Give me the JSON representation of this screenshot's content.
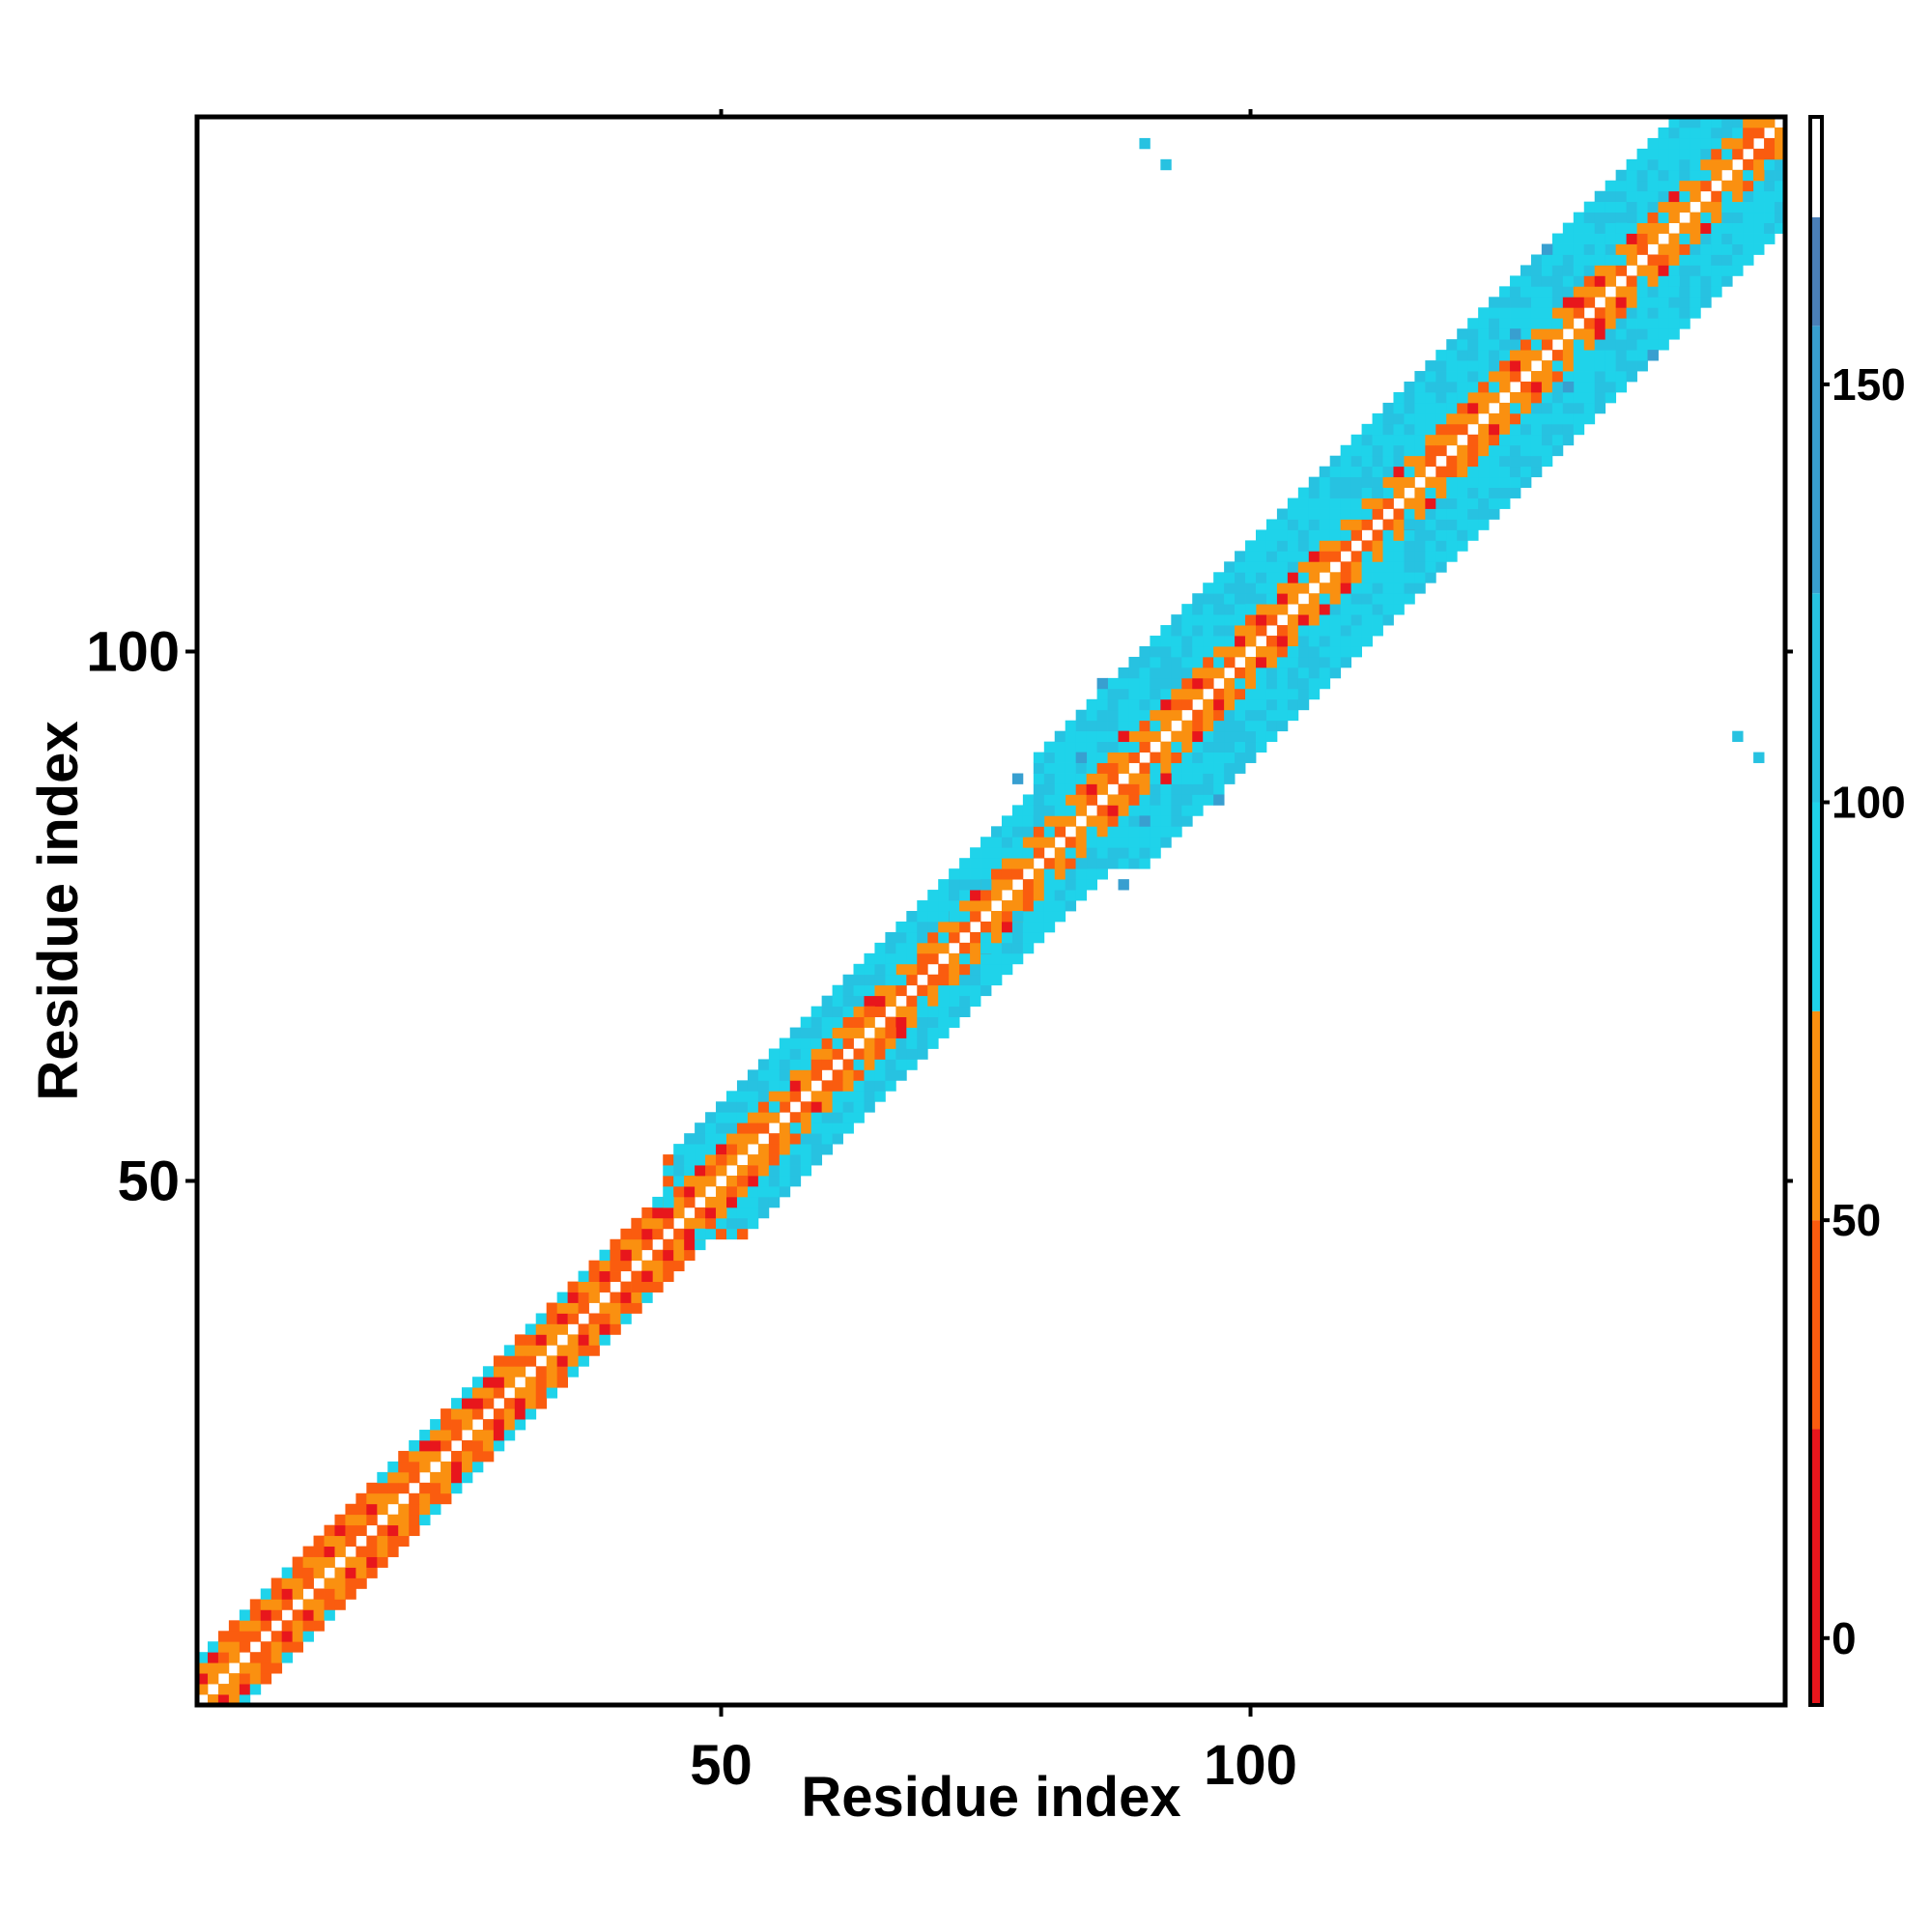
{
  "chart_data": {
    "type": "heatmap",
    "title": "",
    "xlabel": "Residue index",
    "ylabel": "Residue index",
    "n_residues": 150,
    "xlim": [
      0.5,
      150.5
    ],
    "ylim": [
      0.5,
      150.5
    ],
    "x_ticks": [
      50,
      100
    ],
    "y_ticks": [
      50,
      100
    ],
    "colorbar": {
      "range": [
        -8,
        182
      ],
      "ticks": [
        0,
        50,
        100,
        150
      ],
      "bands": [
        {
          "from": -8,
          "to": 25,
          "color": "#e8161c"
        },
        {
          "from": 25,
          "to": 50,
          "color": "#fa5c0f"
        },
        {
          "from": 50,
          "to": 75,
          "color": "#fa9010"
        },
        {
          "from": 75,
          "to": 100,
          "color": "#1fd3ea"
        },
        {
          "from": 100,
          "to": 125,
          "color": "#27c2e1"
        },
        {
          "from": 125,
          "to": 157,
          "color": "#389fd0"
        },
        {
          "from": 157,
          "to": 170,
          "color": "#4a7fb8"
        },
        {
          "from": 170,
          "to": 182,
          "color": "#ffffff"
        }
      ]
    },
    "grid": false,
    "diagonal_band": {
      "description_values": "contacts concentrated along the diagonal, width increasing from ~4 residues to ~10 residues toward the C-terminus"
    },
    "contacts": [
      {
        "i": 40,
        "j": 42,
        "v": 40
      },
      {
        "i": 41,
        "j": 43,
        "v": 20
      },
      {
        "i": 45,
        "j": 48,
        "v": 90
      },
      {
        "i": 47,
        "j": 50,
        "v": 60
      },
      {
        "i": 50,
        "j": 52,
        "v": 30
      },
      {
        "i": 55,
        "j": 57,
        "v": 90
      },
      {
        "i": 64,
        "j": 66,
        "v": 40
      },
      {
        "i": 66,
        "j": 70,
        "v": 90
      },
      {
        "i": 72,
        "j": 75,
        "v": 95
      },
      {
        "i": 75,
        "j": 78,
        "v": 110
      },
      {
        "i": 78,
        "j": 88,
        "v": 130
      },
      {
        "i": 80,
        "j": 84,
        "v": 120
      },
      {
        "i": 82,
        "j": 86,
        "v": 95
      },
      {
        "i": 84,
        "j": 90,
        "v": 140
      },
      {
        "i": 86,
        "j": 97,
        "v": 130
      },
      {
        "i": 88,
        "j": 92,
        "v": 20
      },
      {
        "i": 90,
        "j": 148,
        "v": 120
      },
      {
        "i": 92,
        "j": 146,
        "v": 120
      },
      {
        "i": 100,
        "j": 104,
        "v": 90
      },
      {
        "i": 112,
        "j": 115,
        "v": 100
      },
      {
        "i": 120,
        "j": 124,
        "v": 95
      },
      {
        "i": 125,
        "j": 130,
        "v": 130
      },
      {
        "i": 128,
        "j": 138,
        "v": 140
      },
      {
        "i": 135,
        "j": 140,
        "v": 90
      },
      {
        "i": 145,
        "j": 148,
        "v": 60
      }
    ]
  }
}
